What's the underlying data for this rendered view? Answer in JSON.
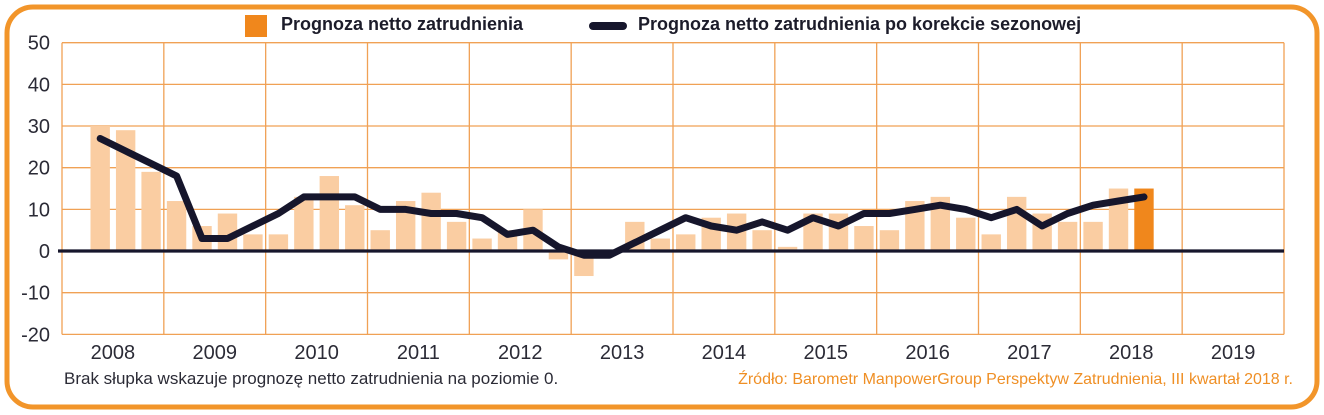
{
  "legend": {
    "bar_label": "Prognoza netto zatrudnienia",
    "line_label": "Prognoza netto zatrudnienia po korekcie sezonowej"
  },
  "footnote": "Brak słupka wskazuje prognozę netto zatrudnienia na poziomie 0.",
  "source": "Źródło: Barometr ManpowerGroup Perspektyw Zatrudnienia, III kwartał 2018 r.",
  "colors": {
    "accent_orange": "#F0871C",
    "light_bar": "#FACDA2",
    "frame_border": "#F2952A",
    "grid_orange": "#F0A155",
    "series_line": "#16162C",
    "axis_text": "#2B2B36",
    "source_text": "#EF8F25"
  },
  "chart_data": {
    "type": "combo",
    "title": "",
    "xlabel": "",
    "ylabel": "",
    "ylim": [
      -20,
      50
    ],
    "y_ticks": [
      50,
      40,
      30,
      20,
      10,
      0,
      -10,
      -20
    ],
    "x_axis_years": [
      "2008",
      "2009",
      "2010",
      "2011",
      "2012",
      "2013",
      "2014",
      "2015",
      "2016",
      "2017",
      "2018",
      "2019"
    ],
    "grid": true,
    "legend_position": "top",
    "highlight_category": "2018 Q3",
    "categories": [
      "2008 Q2",
      "2008 Q3",
      "2008 Q4",
      "2009 Q1",
      "2009 Q2",
      "2009 Q3",
      "2009 Q4",
      "2010 Q1",
      "2010 Q2",
      "2010 Q3",
      "2010 Q4",
      "2011 Q1",
      "2011 Q2",
      "2011 Q3",
      "2011 Q4",
      "2012 Q1",
      "2012 Q2",
      "2012 Q3",
      "2012 Q4",
      "2013 Q1",
      "2013 Q2",
      "2013 Q3",
      "2013 Q4",
      "2014 Q1",
      "2014 Q2",
      "2014 Q3",
      "2014 Q4",
      "2015 Q1",
      "2015 Q2",
      "2015 Q3",
      "2015 Q4",
      "2016 Q1",
      "2016 Q2",
      "2016 Q3",
      "2016 Q4",
      "2017 Q1",
      "2017 Q2",
      "2017 Q3",
      "2017 Q4",
      "2018 Q1",
      "2018 Q2",
      "2018 Q3"
    ],
    "series": [
      {
        "name": "Prognoza netto zatrudnienia",
        "type": "bar",
        "values": [
          30,
          29,
          19,
          12,
          6,
          9,
          4,
          4,
          13,
          18,
          11,
          5,
          12,
          14,
          7,
          3,
          5,
          10,
          -2,
          -6,
          0,
          7,
          3,
          4,
          8,
          9,
          5,
          1,
          9,
          9,
          6,
          5,
          12,
          13,
          8,
          4,
          13,
          9,
          7,
          7,
          15,
          15
        ]
      },
      {
        "name": "Prognoza netto zatrudnienia po korekcie sezonowej",
        "type": "line",
        "values": [
          27,
          24,
          21,
          18,
          3,
          3,
          6,
          9,
          13,
          13,
          13,
          10,
          10,
          9,
          9,
          8,
          4,
          5,
          1,
          -1,
          -1,
          2,
          5,
          8,
          6,
          5,
          7,
          5,
          8,
          6,
          9,
          9,
          10,
          11,
          10,
          8,
          10,
          6,
          9,
          11,
          12,
          13
        ]
      }
    ]
  }
}
